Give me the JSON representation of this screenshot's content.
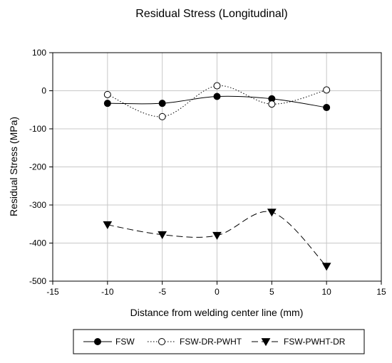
{
  "chart_data": {
    "type": "line",
    "title": "Residual Stress (Longitudinal)",
    "xlabel": "Distance from welding center line (mm)",
    "ylabel": "Residual Stress (MPa)",
    "xlim": [
      -15,
      15
    ],
    "ylim": [
      -500,
      100
    ],
    "xticks": [
      -15,
      -10,
      -5,
      0,
      5,
      10,
      15
    ],
    "yticks": [
      100,
      0,
      -100,
      -200,
      -300,
      -400,
      -500
    ],
    "grid": true,
    "legend_position": "bottom",
    "series": [
      {
        "name": "FSW",
        "marker": "filled-circle",
        "line_style": "solid",
        "color": "#000000",
        "x": [
          -10,
          -5,
          0,
          5,
          10
        ],
        "y": [
          -33,
          -33,
          -15,
          -21,
          -44
        ]
      },
      {
        "name": "FSW-DR-PWHT",
        "marker": "open-circle",
        "line_style": "dotted",
        "color": "#000000",
        "x": [
          -10,
          -5,
          0,
          5,
          10
        ],
        "y": [
          -10,
          -68,
          13,
          -35,
          2
        ]
      },
      {
        "name": "FSW-PWHT-DR",
        "marker": "filled-down-triangle",
        "line_style": "dashed",
        "color": "#000000",
        "x": [
          -10,
          -5,
          0,
          5,
          10
        ],
        "y": [
          -352,
          -378,
          -380,
          -319,
          -461
        ]
      }
    ]
  }
}
